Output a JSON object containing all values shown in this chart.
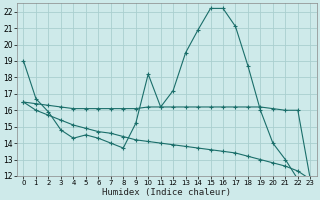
{
  "background_color": "#ceeaea",
  "grid_color": "#aacfcf",
  "line_color": "#1a6e6a",
  "xlabel": "Humidex (Indice chaleur)",
  "ylim": [
    12,
    22.5
  ],
  "xlim": [
    -0.5,
    23.5
  ],
  "yticks": [
    12,
    13,
    14,
    15,
    16,
    17,
    18,
    19,
    20,
    21,
    22
  ],
  "x_ticks": [
    0,
    1,
    2,
    3,
    4,
    5,
    6,
    7,
    8,
    9,
    10,
    11,
    12,
    13,
    14,
    15,
    16,
    17,
    18,
    19,
    20,
    21,
    22,
    23
  ],
  "series": [
    {
      "x": [
        0,
        1,
        2,
        3,
        4,
        5,
        6,
        7,
        8,
        9,
        10,
        11,
        12,
        13,
        14,
        15,
        16,
        17,
        18,
        19,
        20,
        21,
        22,
        23
      ],
      "y": [
        19.0,
        16.7,
        15.9,
        14.8,
        14.3,
        14.5,
        14.3,
        14.0,
        13.7,
        15.2,
        18.2,
        16.2,
        17.2,
        19.5,
        20.9,
        22.2,
        22.2,
        21.1,
        18.7,
        16.0,
        14.0,
        13.0,
        11.8,
        11.7
      ]
    },
    {
      "x": [
        0,
        1,
        2,
        3,
        4,
        5,
        6,
        7,
        8,
        9,
        10,
        11,
        12,
        13,
        14,
        15,
        16,
        17,
        18,
        19,
        20,
        21,
        22,
        23
      ],
      "y": [
        16.5,
        16.4,
        16.3,
        16.2,
        16.1,
        16.1,
        16.1,
        16.1,
        16.1,
        16.1,
        16.2,
        16.2,
        16.2,
        16.2,
        16.2,
        16.2,
        16.2,
        16.2,
        16.2,
        16.2,
        16.1,
        16.0,
        16.0,
        11.8
      ]
    },
    {
      "x": [
        0,
        1,
        2,
        3,
        4,
        5,
        6,
        7,
        8,
        9,
        10,
        11,
        12,
        13,
        14,
        15,
        16,
        17,
        18,
        19,
        20,
        21,
        22,
        23
      ],
      "y": [
        16.5,
        16.0,
        15.7,
        15.4,
        15.1,
        14.9,
        14.7,
        14.6,
        14.4,
        14.2,
        14.1,
        14.0,
        13.9,
        13.8,
        13.7,
        13.6,
        13.5,
        13.4,
        13.2,
        13.0,
        12.8,
        12.6,
        12.3,
        11.8
      ]
    }
  ]
}
